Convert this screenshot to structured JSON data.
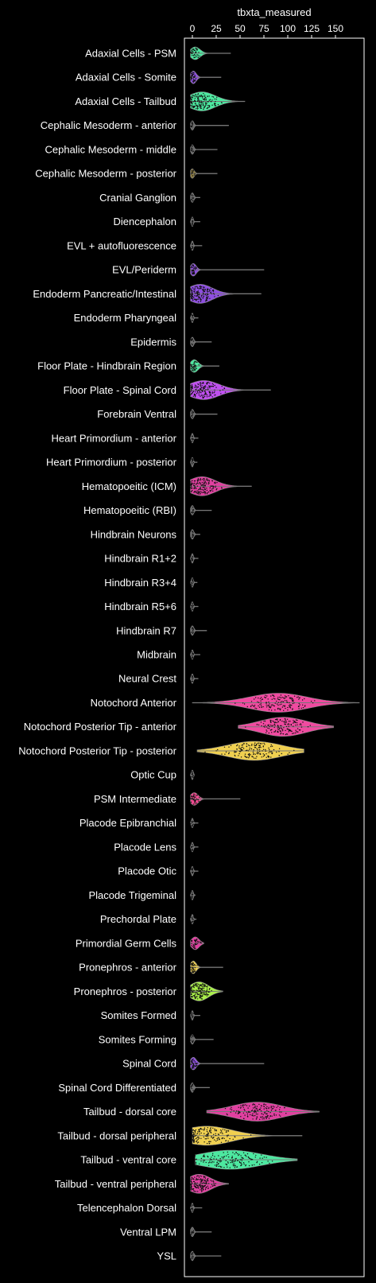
{
  "chart_data": {
    "type": "violin",
    "xlabel": "tbxta_measured",
    "xlim": [
      -8,
      180
    ],
    "xticks": [
      0,
      25,
      50,
      75,
      100,
      125,
      150
    ],
    "categories": [
      {
        "name": "Adaxial Cells - PSM",
        "color": "#4de8a0",
        "median": 3,
        "spread": 5,
        "max": 40
      },
      {
        "name": "Adaxial Cells - Somite",
        "color": "#8e4ee0",
        "median": 1,
        "spread": 3,
        "max": 30
      },
      {
        "name": "Adaxial Cells - Tailbud",
        "color": "#4de8a0",
        "median": 10,
        "spread": 14,
        "max": 55
      },
      {
        "name": "Cephalic Mesoderm - anterior",
        "color": "#666666",
        "median": 0,
        "spread": 1.5,
        "max": 38
      },
      {
        "name": "Cephalic Mesoderm - middle",
        "color": "#666666",
        "median": 0,
        "spread": 1.5,
        "max": 26
      },
      {
        "name": "Cephalic Mesoderm - posterior",
        "color": "#8a7a40",
        "median": 0,
        "spread": 2,
        "max": 26
      },
      {
        "name": "Cranial Ganglion",
        "color": "#666666",
        "median": 0,
        "spread": 1.5,
        "max": 8
      },
      {
        "name": "Diencephalon",
        "color": "#666666",
        "median": 0,
        "spread": 1,
        "max": 8
      },
      {
        "name": "EVL + autofluorescence",
        "color": "#666666",
        "median": 0,
        "spread": 1,
        "max": 10
      },
      {
        "name": "EVL/Periderm",
        "color": "#8e4ee0",
        "median": 1,
        "spread": 3,
        "max": 75
      },
      {
        "name": "Endoderm Pancreatic/Intestinal",
        "color": "#8e4ee0",
        "median": 8,
        "spread": 13,
        "max": 72
      },
      {
        "name": "Endoderm Pharyngeal",
        "color": "#666666",
        "median": 0,
        "spread": 1,
        "max": 6
      },
      {
        "name": "Epidermis",
        "color": "#666666",
        "median": 0,
        "spread": 1.5,
        "max": 20
      },
      {
        "name": "Floor Plate - Hindbrain Region",
        "color": "#4de8a0",
        "median": 2,
        "spread": 4,
        "max": 28
      },
      {
        "name": "Floor Plate - Spinal Cord",
        "color": "#c050f0",
        "median": 12,
        "spread": 16,
        "max": 82
      },
      {
        "name": "Forebrain Ventral",
        "color": "#666666",
        "median": 0,
        "spread": 1.5,
        "max": 26
      },
      {
        "name": "Heart Primordium - anterior",
        "color": "#666666",
        "median": 0,
        "spread": 1,
        "max": 6
      },
      {
        "name": "Heart Primordium - posterior",
        "color": "#666666",
        "median": 0,
        "spread": 1,
        "max": 5
      },
      {
        "name": "Hematopoeitic (ICM)",
        "color": "#e040a0",
        "median": 10,
        "spread": 14,
        "max": 62
      },
      {
        "name": "Hematopoeitic (RBI)",
        "color": "#666666",
        "median": 0,
        "spread": 1.5,
        "max": 20
      },
      {
        "name": "Hindbrain Neurons",
        "color": "#666666",
        "median": 0,
        "spread": 1.5,
        "max": 8
      },
      {
        "name": "Hindbrain R1+2",
        "color": "#666666",
        "median": 0,
        "spread": 1,
        "max": 6
      },
      {
        "name": "Hindbrain R3+4",
        "color": "#666666",
        "median": 0,
        "spread": 1,
        "max": 5
      },
      {
        "name": "Hindbrain R5+6",
        "color": "#666666",
        "median": 0,
        "spread": 1,
        "max": 6
      },
      {
        "name": "Hindbrain R7",
        "color": "#666666",
        "median": 0,
        "spread": 1.5,
        "max": 15
      },
      {
        "name": "Midbrain",
        "color": "#666666",
        "median": 0,
        "spread": 1,
        "max": 8
      },
      {
        "name": "Neural Crest",
        "color": "#666666",
        "median": 0,
        "spread": 1,
        "max": 6
      },
      {
        "name": "Notochord Anterior",
        "color": "#f04aa0",
        "median": 90,
        "spread": 30,
        "max": 175,
        "min": 0
      },
      {
        "name": "Notochord Posterior Tip - anterior",
        "color": "#f04aa0",
        "median": 95,
        "spread": 24,
        "max": 148,
        "min": 48
      },
      {
        "name": "Notochord Posterior Tip - posterior",
        "color": "#f0d050",
        "median": 65,
        "spread": 28,
        "max": 117,
        "min": 5
      },
      {
        "name": "Optic Cup",
        "color": "#666666",
        "median": 0,
        "spread": 1,
        "max": 2
      },
      {
        "name": "PSM Intermediate",
        "color": "#f04a90",
        "median": 2,
        "spread": 4,
        "max": 50
      },
      {
        "name": "Placode Epibranchial",
        "color": "#666666",
        "median": 0,
        "spread": 1,
        "max": 6
      },
      {
        "name": "Placode Lens",
        "color": "#666666",
        "median": 0,
        "spread": 1,
        "max": 6
      },
      {
        "name": "Placode Otic",
        "color": "#666666",
        "median": 0,
        "spread": 1,
        "max": 6
      },
      {
        "name": "Placode Trigeminal",
        "color": "#666666",
        "median": 0,
        "spread": 1,
        "max": 3
      },
      {
        "name": "Prechordal Plate",
        "color": "#666666",
        "median": 0,
        "spread": 1,
        "max": 4
      },
      {
        "name": "Primordial Germ Cells",
        "color": "#e040a0",
        "median": 3,
        "spread": 4,
        "max": 12
      },
      {
        "name": "Pronephros - anterior",
        "color": "#f0d050",
        "median": 1,
        "spread": 3,
        "max": 32
      },
      {
        "name": "Pronephros - posterior",
        "color": "#aaf04a",
        "median": 7,
        "spread": 10,
        "max": 32
      },
      {
        "name": "Somites Formed",
        "color": "#666666",
        "median": 0,
        "spread": 1,
        "max": 8
      },
      {
        "name": "Somites Forming",
        "color": "#666666",
        "median": 0,
        "spread": 1.5,
        "max": 22
      },
      {
        "name": "Spinal Cord",
        "color": "#8e4ee0",
        "median": 1,
        "spread": 3,
        "max": 75
      },
      {
        "name": "Spinal Cord Differentiated",
        "color": "#666666",
        "median": 0,
        "spread": 1.5,
        "max": 18
      },
      {
        "name": "Tailbud - dorsal core",
        "color": "#e040a0",
        "median": 68,
        "spread": 26,
        "max": 133,
        "min": 15
      },
      {
        "name": "Tailbud - dorsal peripheral",
        "color": "#f0d050",
        "median": 15,
        "spread": 26,
        "max": 115,
        "min": 0
      },
      {
        "name": "Tailbud - ventral core",
        "color": "#4de8a0",
        "median": 40,
        "spread": 32,
        "max": 110,
        "min": 3
      },
      {
        "name": "Tailbud - ventral peripheral",
        "color": "#e040a0",
        "median": 7,
        "spread": 12,
        "max": 38
      },
      {
        "name": "Telencephalon Dorsal",
        "color": "#666666",
        "median": 0,
        "spread": 1,
        "max": 10
      },
      {
        "name": "Ventral LPM",
        "color": "#666666",
        "median": 0,
        "spread": 1.5,
        "max": 20
      },
      {
        "name": "YSL",
        "color": "#666666",
        "median": 0,
        "spread": 1.5,
        "max": 30
      }
    ]
  }
}
